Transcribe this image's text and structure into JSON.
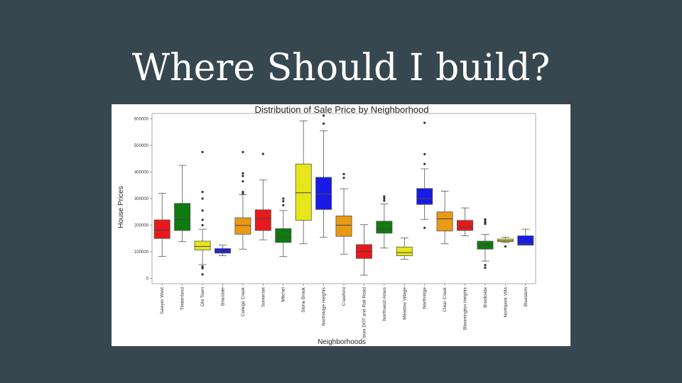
{
  "slide": {
    "title": "Where Should I build?"
  },
  "chart_data": {
    "type": "box",
    "title": "Distribution of Sale Price by Neighborhood",
    "xlabel": "Neighborhoods",
    "ylabel": "House Prices",
    "ylim": [
      -20000,
      620000
    ],
    "yticks": [
      0,
      100000,
      200000,
      300000,
      400000,
      500000,
      600000
    ],
    "grid": false,
    "colors": {
      "red": "#e8191c",
      "green": "#0f7a0f",
      "yellow": "#e6e61a",
      "blue": "#1a1ae6",
      "orange": "#e89a14"
    },
    "categories": [
      {
        "name": "Sawyer West",
        "color": "red",
        "whislo": 83000,
        "q1": 150000,
        "med": 182000,
        "q3": 220000,
        "whishi": 320000,
        "fliers": []
      },
      {
        "name": "Timberland",
        "color": "green",
        "whislo": 138000,
        "q1": 180000,
        "med": 221000,
        "q3": 282000,
        "whishi": 425000,
        "fliers": []
      },
      {
        "name": "Old Town",
        "color": "yellow",
        "whislo": 52000,
        "q1": 107000,
        "med": 120000,
        "q3": 140000,
        "whishi": 185000,
        "fliers": [
          475000,
          325000,
          300000,
          255000,
          220000,
          200000,
          45000,
          38000,
          15000
        ]
      },
      {
        "name": "Briardale",
        "color": "blue",
        "whislo": 85000,
        "q1": 95000,
        "med": 103000,
        "q3": 112000,
        "whishi": 125000,
        "fliers": []
      },
      {
        "name": "College Creek",
        "color": "orange",
        "whislo": 110000,
        "q1": 166000,
        "med": 199000,
        "q3": 228000,
        "whishi": 315000,
        "fliers": [
          475000,
          395000,
          385000,
          365000,
          325000,
          320000
        ]
      },
      {
        "name": "Somerset",
        "color": "red",
        "whislo": 145000,
        "q1": 180000,
        "med": 225000,
        "q3": 258000,
        "whishi": 370000,
        "fliers": [
          468000
        ]
      },
      {
        "name": "Mitchel",
        "color": "green",
        "whislo": 82000,
        "q1": 135000,
        "med": 155000,
        "q3": 187000,
        "whishi": 255000,
        "fliers": [
          300000,
          290000,
          275000
        ]
      },
      {
        "name": "Stone Brook",
        "color": "yellow",
        "whislo": 130000,
        "q1": 218000,
        "med": 322000,
        "q3": 430000,
        "whishi": 592000,
        "fliers": []
      },
      {
        "name": "Northridge Heights",
        "color": "blue",
        "whislo": 155000,
        "q1": 259000,
        "med": 318000,
        "q3": 380000,
        "whishi": 555000,
        "fliers": [
          612000,
          582000
        ]
      },
      {
        "name": "Crawford",
        "color": "orange",
        "whislo": 91000,
        "q1": 158000,
        "med": 200000,
        "q3": 235000,
        "whishi": 337000,
        "fliers": [
          392000,
          378000
        ]
      },
      {
        "name": "Iowa DOT and Rail Road",
        "color": "red",
        "whislo": 12000,
        "q1": 75000,
        "med": 101000,
        "q3": 127000,
        "whishi": 202000,
        "fliers": []
      },
      {
        "name": "Northwest Ames",
        "color": "green",
        "whislo": 114000,
        "q1": 170000,
        "med": 185000,
        "q3": 215000,
        "whishi": 280000,
        "fliers": [
          308000,
          300000,
          292000
        ]
      },
      {
        "name": "Meadow Village",
        "color": "yellow",
        "whislo": 72000,
        "q1": 85000,
        "med": 97000,
        "q3": 118000,
        "whishi": 152000,
        "fliers": []
      },
      {
        "name": "Northridge",
        "color": "blue",
        "whislo": 222000,
        "q1": 278000,
        "med": 300000,
        "q3": 338000,
        "whishi": 412000,
        "fliers": [
          585000,
          467000,
          430000,
          190000
        ]
      },
      {
        "name": "Clear Creek",
        "color": "orange",
        "whislo": 130000,
        "q1": 178000,
        "med": 224000,
        "q3": 250000,
        "whishi": 328000,
        "fliers": []
      },
      {
        "name": "Bloomington Heights",
        "color": "red",
        "whislo": 160000,
        "q1": 180000,
        "med": 193000,
        "q3": 218000,
        "whishi": 265000,
        "fliers": []
      },
      {
        "name": "Brookside",
        "color": "green",
        "whislo": 65000,
        "q1": 110000,
        "med": 125000,
        "q3": 140000,
        "whishi": 165000,
        "fliers": [
          222000,
          215000,
          210000,
          205000,
          50000,
          40000
        ]
      },
      {
        "name": "Northpark Villa",
        "color": "yellow",
        "whislo": 135000,
        "q1": 138000,
        "med": 142000,
        "q3": 148000,
        "whishi": 155000,
        "fliers": [
          120000
        ]
      },
      {
        "name": "Bluestem",
        "color": "blue",
        "whislo": 125000,
        "q1": 125000,
        "med": 130000,
        "q3": 160000,
        "whishi": 185000,
        "fliers": []
      }
    ]
  }
}
